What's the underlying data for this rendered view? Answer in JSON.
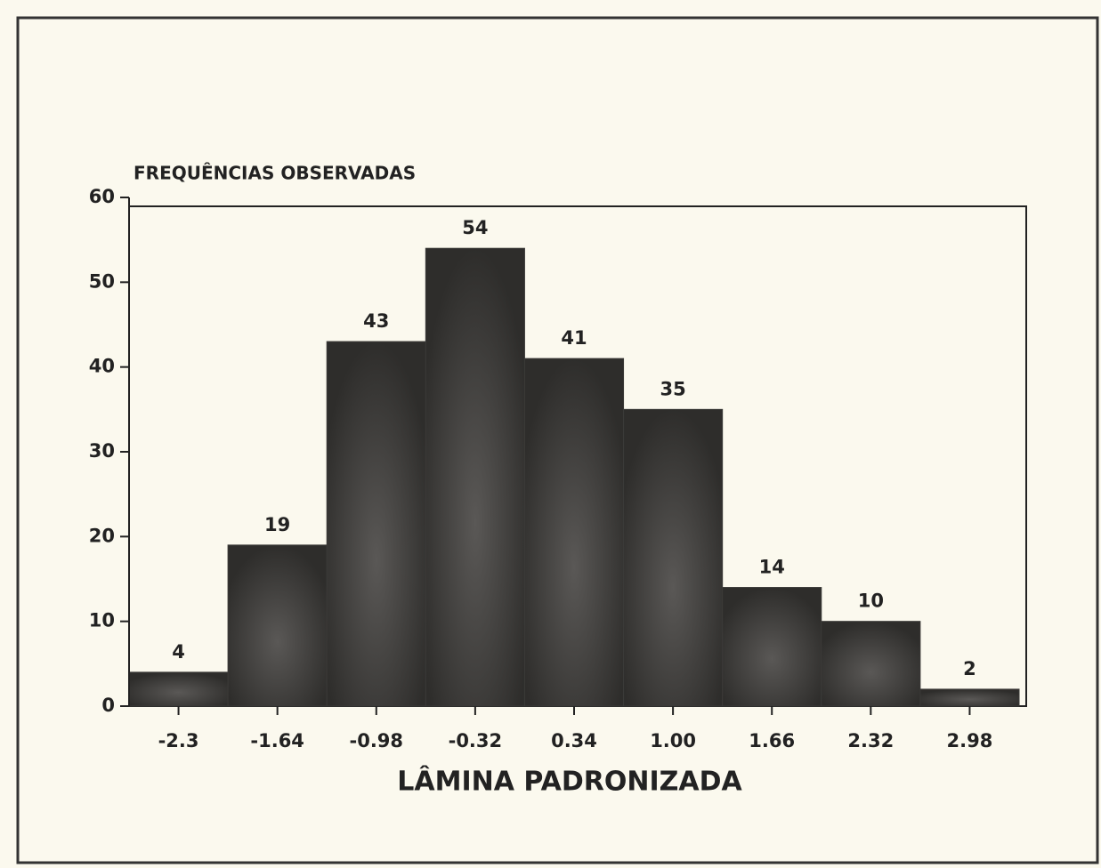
{
  "chart_data": {
    "type": "bar",
    "title": "FREQUÊNCIAS OBSERVADAS",
    "x_label": "LÂMINA PADRONIZADA",
    "categories": [
      "-2.3",
      "-1.64",
      "-0.98",
      "-0.32",
      "0.34",
      "1.00",
      "1.66",
      "2.32",
      "2.98"
    ],
    "values": [
      4,
      19,
      43,
      54,
      41,
      35,
      14,
      10,
      2
    ],
    "color": "#3b3a38",
    "ylim": [
      0,
      60
    ],
    "yticks": [
      0,
      10,
      20,
      30,
      40,
      50,
      60
    ],
    "grid": false
  }
}
